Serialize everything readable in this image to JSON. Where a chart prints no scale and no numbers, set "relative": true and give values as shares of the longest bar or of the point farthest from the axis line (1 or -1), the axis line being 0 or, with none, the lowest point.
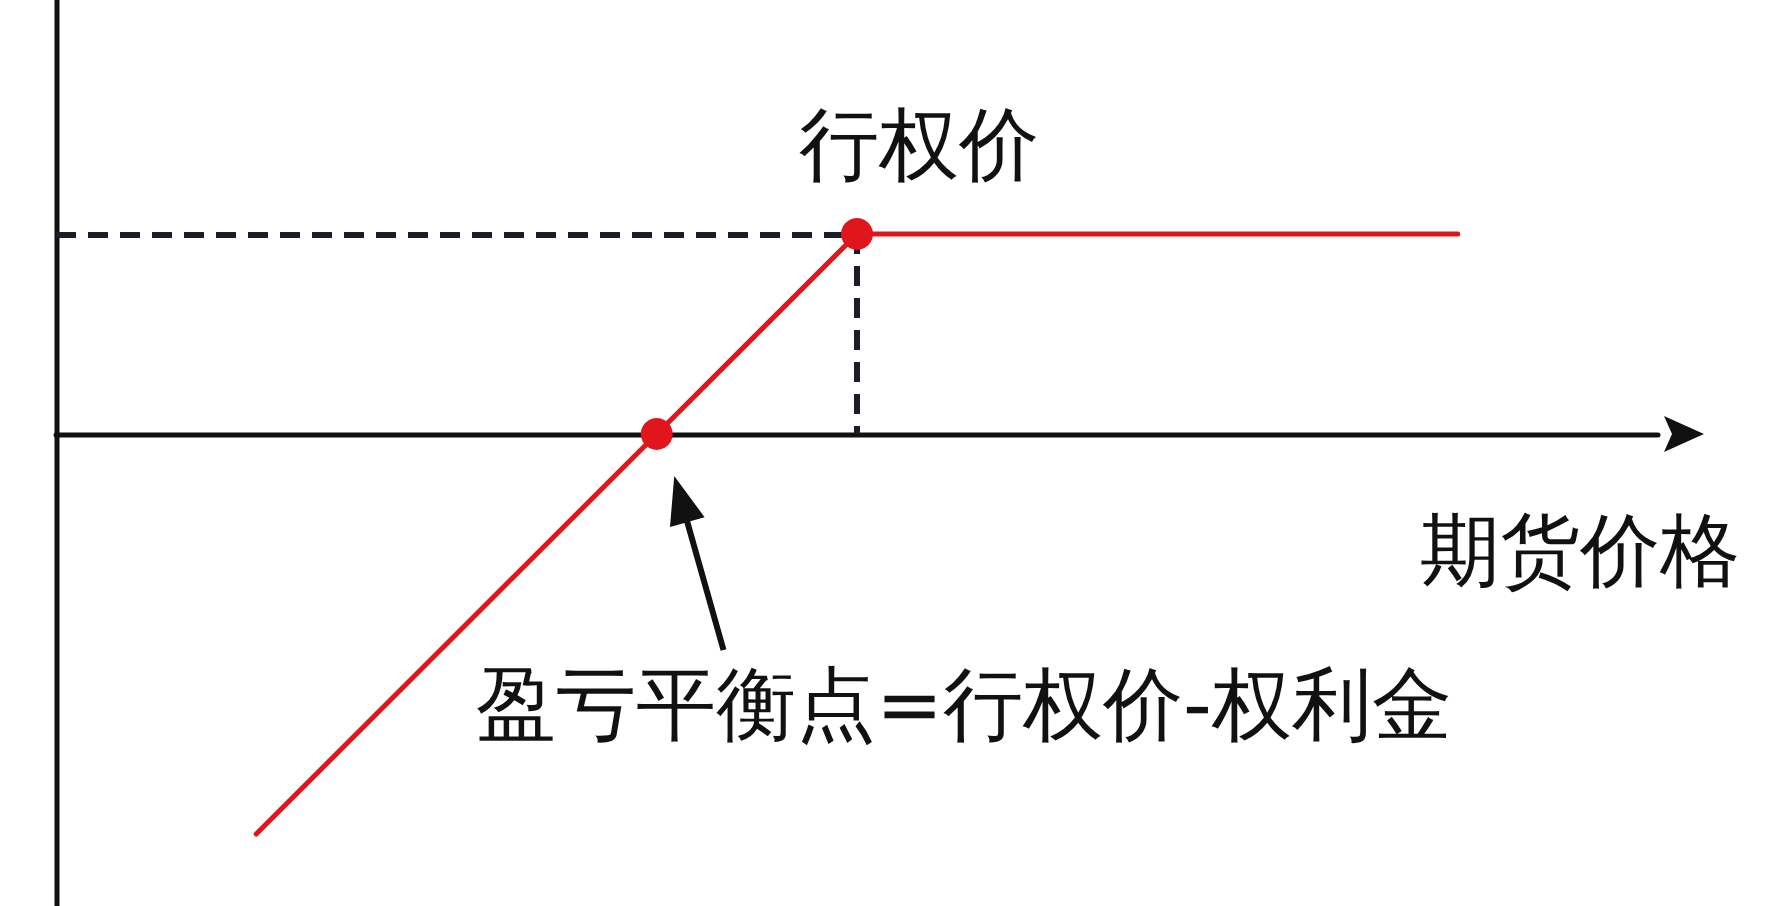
{
  "chart_data": {
    "type": "line",
    "relative": true,
    "tick_labels": false,
    "xlabel": "期货价格",
    "categories": [
      null,
      null,
      null,
      null,
      null,
      null,
      null,
      null,
      null
    ],
    "series": [
      {
        "color": "#e0161c",
        "marker": "none",
        "values": [
          null,
          -1,
          -0.5,
          0,
          null,
          null,
          null,
          null,
          null
        ]
      },
      {
        "color": "#e0161c",
        "marker": "circle",
        "values": [
          null,
          null,
          null,
          0,
          0.5,
          null,
          null,
          null,
          null
        ]
      },
      {
        "color": "#e0161c",
        "marker": "none",
        "values": [
          null,
          null,
          null,
          null,
          0.5,
          0.5,
          0.5,
          0.5,
          null
        ]
      }
    ],
    "ref_lines": [
      {
        "axis": "y",
        "value": 0.5,
        "color": "#1c1c2a",
        "line_style": "dashed"
      }
    ],
    "annotations": [
      {
        "text": "行权价",
        "y": 0.5
      },
      "盈亏平衡点=行权价-权利金"
    ]
  }
}
